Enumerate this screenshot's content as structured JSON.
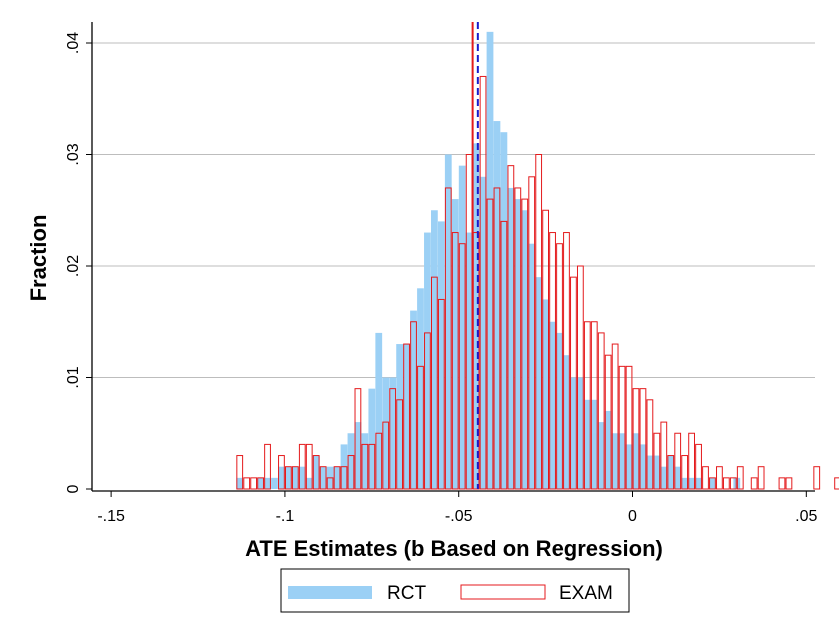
{
  "chart_data": {
    "type": "histogram",
    "xlabel": "ATE Estimates (b Based on Regression)",
    "ylabel": "Fraction",
    "xlim": [
      -0.15,
      0.05
    ],
    "ylim": [
      0,
      0.04
    ],
    "x_ticks": [
      -0.15,
      -0.1,
      -0.05,
      0,
      0.05
    ],
    "x_tick_labels": [
      "-.15",
      "-.1",
      "-.05",
      "0",
      ".05"
    ],
    "y_ticks": [
      0,
      0.01,
      0.02,
      0.03,
      0.04
    ],
    "y_tick_labels": [
      "0",
      ".01",
      ".02",
      ".03",
      ".04"
    ],
    "grid": "horizontal",
    "legend_position": "bottom",
    "bin_width": 0.00195,
    "colors": {
      "rct_fill": "#9bd0f5",
      "exam_edge": "#e41a1c",
      "rct_mean_line": "#1a1acc",
      "exam_mean_line": "#e41a1c",
      "gridline": "#bdbdbd"
    },
    "series": [
      {
        "name": "RCT",
        "style": "filled",
        "bins": [
          [
            -0.113,
            0.001
          ],
          [
            -0.107,
            0.001
          ],
          [
            -0.105,
            0.001
          ],
          [
            -0.103,
            0.001
          ],
          [
            -0.101,
            0.002
          ],
          [
            -0.099,
            0.002
          ],
          [
            -0.097,
            0.002
          ],
          [
            -0.095,
            0.002
          ],
          [
            -0.093,
            0.001
          ],
          [
            -0.091,
            0.003
          ],
          [
            -0.089,
            0.002
          ],
          [
            -0.087,
            0.002
          ],
          [
            -0.085,
            0.002
          ],
          [
            -0.083,
            0.004
          ],
          [
            -0.081,
            0.005
          ],
          [
            -0.079,
            0.006
          ],
          [
            -0.077,
            0.005
          ],
          [
            -0.075,
            0.009
          ],
          [
            -0.073,
            0.014
          ],
          [
            -0.071,
            0.01
          ],
          [
            -0.069,
            0.01
          ],
          [
            -0.067,
            0.013
          ],
          [
            -0.065,
            0.013
          ],
          [
            -0.063,
            0.016
          ],
          [
            -0.061,
            0.018
          ],
          [
            -0.059,
            0.023
          ],
          [
            -0.057,
            0.025
          ],
          [
            -0.055,
            0.024
          ],
          [
            -0.053,
            0.03
          ],
          [
            -0.051,
            0.026
          ],
          [
            -0.049,
            0.029
          ],
          [
            -0.047,
            0.023
          ],
          [
            -0.045,
            0.031
          ],
          [
            -0.043,
            0.028
          ],
          [
            -0.041,
            0.041
          ],
          [
            -0.039,
            0.033
          ],
          [
            -0.037,
            0.032
          ],
          [
            -0.035,
            0.027
          ],
          [
            -0.033,
            0.026
          ],
          [
            -0.031,
            0.025
          ],
          [
            -0.029,
            0.022
          ],
          [
            -0.027,
            0.019
          ],
          [
            -0.025,
            0.017
          ],
          [
            -0.023,
            0.015
          ],
          [
            -0.021,
            0.014
          ],
          [
            -0.019,
            0.012
          ],
          [
            -0.017,
            0.01
          ],
          [
            -0.015,
            0.01
          ],
          [
            -0.013,
            0.008
          ],
          [
            -0.011,
            0.008
          ],
          [
            -0.009,
            0.006
          ],
          [
            -0.007,
            0.007
          ],
          [
            -0.005,
            0.005
          ],
          [
            -0.003,
            0.005
          ],
          [
            -0.001,
            0.004
          ],
          [
            0.001,
            0.005
          ],
          [
            0.003,
            0.004
          ],
          [
            0.005,
            0.003
          ],
          [
            0.007,
            0.003
          ],
          [
            0.009,
            0.002
          ],
          [
            0.011,
            0.003
          ],
          [
            0.013,
            0.002
          ],
          [
            0.015,
            0.001
          ],
          [
            0.017,
            0.001
          ],
          [
            0.019,
            0.001
          ],
          [
            0.023,
            0.001
          ],
          [
            0.03,
            0.001
          ]
        ]
      },
      {
        "name": "EXAM",
        "style": "outline",
        "bins": [
          [
            -0.113,
            0.003
          ],
          [
            -0.111,
            0.001
          ],
          [
            -0.109,
            0.001
          ],
          [
            -0.107,
            0.001
          ],
          [
            -0.105,
            0.004
          ],
          [
            -0.101,
            0.003
          ],
          [
            -0.099,
            0.002
          ],
          [
            -0.097,
            0.002
          ],
          [
            -0.095,
            0.004
          ],
          [
            -0.093,
            0.004
          ],
          [
            -0.091,
            0.003
          ],
          [
            -0.089,
            0.002
          ],
          [
            -0.087,
            0.001
          ],
          [
            -0.085,
            0.002
          ],
          [
            -0.083,
            0.002
          ],
          [
            -0.081,
            0.003
          ],
          [
            -0.079,
            0.009
          ],
          [
            -0.077,
            0.004
          ],
          [
            -0.075,
            0.004
          ],
          [
            -0.073,
            0.005
          ],
          [
            -0.071,
            0.006
          ],
          [
            -0.069,
            0.009
          ],
          [
            -0.067,
            0.008
          ],
          [
            -0.065,
            0.013
          ],
          [
            -0.063,
            0.015
          ],
          [
            -0.061,
            0.011
          ],
          [
            -0.059,
            0.014
          ],
          [
            -0.057,
            0.019
          ],
          [
            -0.055,
            0.017
          ],
          [
            -0.053,
            0.027
          ],
          [
            -0.051,
            0.023
          ],
          [
            -0.049,
            0.022
          ],
          [
            -0.047,
            0.03
          ],
          [
            -0.045,
            0.023
          ],
          [
            -0.043,
            0.037
          ],
          [
            -0.041,
            0.026
          ],
          [
            -0.039,
            0.027
          ],
          [
            -0.037,
            0.024
          ],
          [
            -0.035,
            0.029
          ],
          [
            -0.033,
            0.027
          ],
          [
            -0.031,
            0.026
          ],
          [
            -0.029,
            0.028
          ],
          [
            -0.027,
            0.03
          ],
          [
            -0.025,
            0.025
          ],
          [
            -0.023,
            0.023
          ],
          [
            -0.021,
            0.022
          ],
          [
            -0.019,
            0.023
          ],
          [
            -0.017,
            0.019
          ],
          [
            -0.015,
            0.02
          ],
          [
            -0.013,
            0.015
          ],
          [
            -0.011,
            0.015
          ],
          [
            -0.009,
            0.014
          ],
          [
            -0.007,
            0.012
          ],
          [
            -0.005,
            0.013
          ],
          [
            -0.003,
            0.011
          ],
          [
            -0.001,
            0.011
          ],
          [
            0.001,
            0.009
          ],
          [
            0.003,
            0.009
          ],
          [
            0.005,
            0.008
          ],
          [
            0.007,
            0.005
          ],
          [
            0.009,
            0.006
          ],
          [
            0.011,
            0.003
          ],
          [
            0.013,
            0.005
          ],
          [
            0.015,
            0.003
          ],
          [
            0.017,
            0.005
          ],
          [
            0.019,
            0.004
          ],
          [
            0.021,
            0.002
          ],
          [
            0.023,
            0.001
          ],
          [
            0.025,
            0.002
          ],
          [
            0.027,
            0.001
          ],
          [
            0.029,
            0.001
          ],
          [
            0.031,
            0.002
          ],
          [
            0.035,
            0.001
          ],
          [
            0.037,
            0.002
          ],
          [
            0.043,
            0.001
          ],
          [
            0.045,
            0.001
          ],
          [
            0.053,
            0.002
          ],
          [
            0.059,
            0.001
          ]
        ]
      }
    ],
    "mean_lines": [
      {
        "series": "RCT",
        "x": -0.0445,
        "style": "dashed"
      },
      {
        "series": "EXAM",
        "x": -0.046,
        "style": "solid"
      }
    ]
  },
  "legend": {
    "items": [
      {
        "label": "RCT",
        "swatch": "filled"
      },
      {
        "label": "EXAM",
        "swatch": "outline"
      }
    ]
  }
}
